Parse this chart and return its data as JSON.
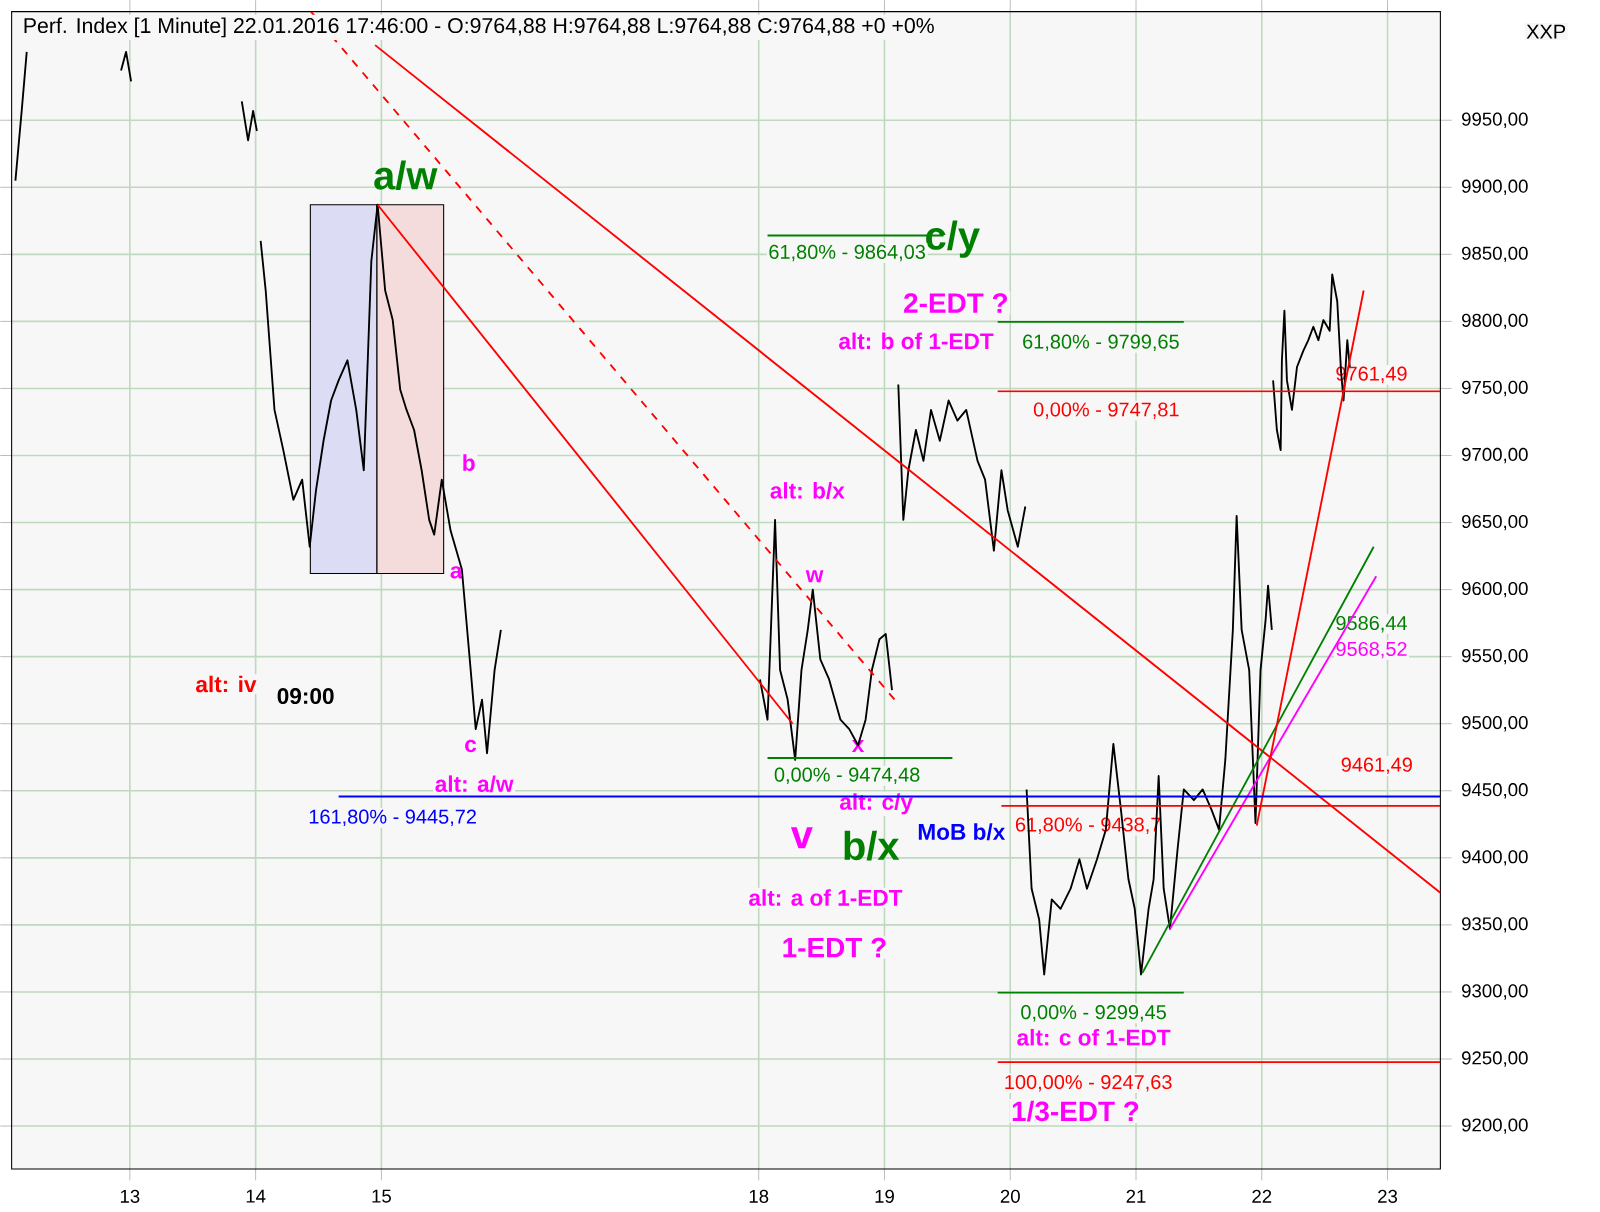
{
  "chart_data": {
    "type": "line",
    "title": "Perf. Index [1 Minute] 22.01.2016 17:46:00 - O:9764,88 H:9764,88 L:9764,88 C:9764,88 +0 +0%",
    "xlim": [
      12.06,
      23.42
    ],
    "ylim": [
      9168,
      10031
    ],
    "xticks": [
      13,
      14,
      15,
      18,
      19,
      20,
      21,
      22,
      23
    ],
    "yticks": [
      {
        "value": 9200,
        "label": "9200,00"
      },
      {
        "value": 9250,
        "label": "9250,00"
      },
      {
        "value": 9300,
        "label": "9300,00"
      },
      {
        "value": 9350,
        "label": "9350,00"
      },
      {
        "value": 9400,
        "label": "9400,00"
      },
      {
        "value": 9450,
        "label": "9450,00"
      },
      {
        "value": 9500,
        "label": "9500,00"
      },
      {
        "value": 9550,
        "label": "9550,00"
      },
      {
        "value": 9600,
        "label": "9600,00"
      },
      {
        "value": 9650,
        "label": "9650,00"
      },
      {
        "value": 9700,
        "label": "9700,00"
      },
      {
        "value": 9750,
        "label": "9750,00"
      },
      {
        "value": 9800,
        "label": "9800,00"
      },
      {
        "value": 9850,
        "label": "9850,00"
      },
      {
        "value": 9900,
        "label": "9900,00"
      },
      {
        "value": 9950,
        "label": "9950,00"
      }
    ],
    "grid": true,
    "marker": "none",
    "line_style": "solid",
    "series": [
      {
        "type": "bar",
        "color": "#dcdcf5",
        "x": [
          14.7
        ],
        "base": [
          9612
        ],
        "values": [
          275
        ]
      },
      {
        "type": "bar",
        "color": "#f5dcdc",
        "x": [
          15.23
        ],
        "base": [
          9612
        ],
        "values": [
          275
        ]
      },
      {
        "color": "#000000",
        "x": [
          12.09,
          12.14,
          12.18,
          12.55,
          12.93,
          12.97,
          13.01,
          13.45,
          13.89,
          13.94,
          13.98,
          14.01,
          14.02,
          14.04,
          14.08,
          14.15,
          14.22,
          14.3,
          14.37,
          14.43,
          14.48,
          14.54,
          14.6,
          14.66,
          14.73,
          14.8,
          14.86,
          14.92,
          14.97,
          15.03,
          15.09,
          15.15,
          15.2,
          15.26,
          15.32,
          15.38,
          15.42,
          15.48,
          15.55,
          15.64,
          15.71,
          15.75,
          15.8,
          15.84,
          15.9,
          15.95,
          17.0,
          18.01,
          18.07,
          18.13,
          18.17,
          18.23,
          18.29,
          18.34,
          18.39,
          18.43,
          18.49,
          18.56,
          18.65,
          18.72,
          18.79,
          18.85,
          18.9,
          18.96,
          19.01,
          19.06,
          19.08,
          19.11,
          19.15,
          19.19,
          19.25,
          19.31,
          19.37,
          19.44,
          19.51,
          19.58,
          19.65,
          19.74,
          19.8,
          19.87,
          19.93,
          19.98,
          20.06,
          20.12,
          20.125,
          20.13,
          20.17,
          20.23,
          20.27,
          20.33,
          20.4,
          20.48,
          20.55,
          20.61,
          20.69,
          20.76,
          20.82,
          20.88,
          20.94,
          20.99,
          21.04,
          21.1,
          21.14,
          21.18,
          21.22,
          21.27,
          21.33,
          21.38,
          21.46,
          21.53,
          21.6,
          21.66,
          21.71,
          21.77,
          21.8,
          21.84,
          21.9,
          21.95,
          21.99,
          22.03,
          22.05,
          22.08,
          22.085,
          22.09,
          22.12,
          22.15,
          22.16,
          22.18,
          22.2,
          22.24,
          22.28,
          22.33,
          22.37,
          22.41,
          22.45,
          22.49,
          22.54,
          22.56,
          22.6,
          22.63,
          22.65,
          22.68,
          22.7
        ],
        "values": [
          9905,
          9957,
          10001,
          null,
          9987,
          10001,
          9979,
          null,
          9964,
          9935,
          9957,
          9942,
          null,
          9860,
          9823,
          9734,
          9704,
          9667,
          9682,
          9632,
          9674,
          9711,
          9741,
          9756,
          9771,
          9734,
          9689,
          9845,
          9887,
          9823,
          9801,
          9749,
          9734,
          9719,
          9689,
          9652,
          9641,
          9682,
          9644,
          9615,
          9540,
          9496,
          9518,
          9478,
          9540,
          9570,
          null,
          9533,
          9503,
          9652,
          9540,
          9518,
          9473,
          9540,
          9570,
          9600,
          9548,
          9533,
          9503,
          9496,
          9484,
          9503,
          9540,
          9563,
          9567,
          9525,
          null,
          9753,
          9652,
          9689,
          9719,
          9696,
          9734,
          9711,
          9741,
          9726,
          9734,
          9696,
          9682,
          9629,
          9689,
          9659,
          9632,
          9662,
          null,
          9451,
          9377,
          9354,
          9313,
          9369,
          9362,
          9377,
          9399,
          9377,
          9399,
          9421,
          9485,
          9436,
          9384,
          9362,
          9313,
          9362,
          9384,
          9461,
          9377,
          9347,
          9406,
          9451,
          9443,
          9451,
          9436,
          9421,
          9473,
          9570,
          9655,
          9570,
          9540,
          9426,
          9540,
          9577,
          9603,
          9570,
          null,
          9756,
          9719,
          9704,
          9771,
          9808,
          9756,
          9734,
          9766,
          9778,
          9786,
          9796,
          9786,
          9801,
          9793,
          9835,
          9815,
          9763,
          9741,
          9786,
          9766
        ]
      },
      {
        "color": "#ff0000",
        "x": [
          14.95,
          23.42
        ],
        "values": [
          10006,
          9374
        ]
      },
      {
        "color": "#ff0000",
        "line_style": "dashed",
        "x": [
          14.44,
          19.08
        ],
        "values": [
          10031,
          9518
        ]
      },
      {
        "color": "#ff0000",
        "x": [
          14.97,
          18.27
        ],
        "values": [
          9887,
          9500
        ]
      },
      {
        "color": "#008000",
        "x": [
          21.05,
          22.89
        ],
        "values": [
          9314,
          9632
        ]
      },
      {
        "color": "#ff00ff",
        "x": [
          21.27,
          22.91
        ],
        "values": [
          9347,
          9610
        ]
      },
      {
        "color": "#ff0000",
        "x": [
          21.96,
          22.81
        ],
        "values": [
          9424,
          9823
        ]
      },
      {
        "color": "#0000ff",
        "x": [
          14.66,
          23.42
        ],
        "values": [
          9445.72,
          9445.72
        ]
      },
      {
        "color": "#ff0000",
        "x": [
          19.93,
          23.42
        ],
        "values": [
          9438.7,
          9438.7
        ]
      },
      {
        "color": "#008000",
        "x": [
          18.07,
          19.54
        ],
        "values": [
          9474.48,
          9474.48
        ]
      },
      {
        "color": "#008000",
        "x": [
          18.07,
          19.47
        ],
        "values": [
          9864.03,
          9864.03
        ]
      },
      {
        "color": "#008000",
        "x": [
          19.9,
          21.38
        ],
        "values": [
          9799.65,
          9799.65
        ]
      },
      {
        "color": "#ff0000",
        "x": [
          19.9,
          23.42
        ],
        "values": [
          9747.81,
          9747.81
        ]
      },
      {
        "color": "#008000",
        "x": [
          19.9,
          21.38
        ],
        "values": [
          9299.45,
          9299.45
        ]
      },
      {
        "color": "#ff0000",
        "x": [
          19.9,
          23.42
        ],
        "values": [
          9247.63,
          9247.63
        ]
      }
    ],
    "annotations": [
      "XXP",
      "a/w",
      "c/y",
      "2-EDT ?",
      "alt: b of 1-EDT",
      "61,80% - 9799,65",
      "0,00% - 9747,81",
      "61,80% - 9864,03",
      "9761,49",
      "b",
      "alt: b/x",
      "a",
      "w",
      "alt: iv",
      "09:00",
      "9586,44",
      "9568,52",
      "9461,49",
      "c",
      "alt: a/w",
      "0,00% - 9474,48",
      "x",
      "alt: c/y",
      "161,80% - 9445,72",
      "MoB b/x",
      "61,80% - 9438,7",
      "v",
      "b/x",
      "alt: a of 1-EDT",
      "1-EDT ?",
      "0,00% - 9299,45",
      "alt: c of 1-EDT",
      "100,00% - 9247,63",
      "1/3-EDT ?"
    ]
  }
}
